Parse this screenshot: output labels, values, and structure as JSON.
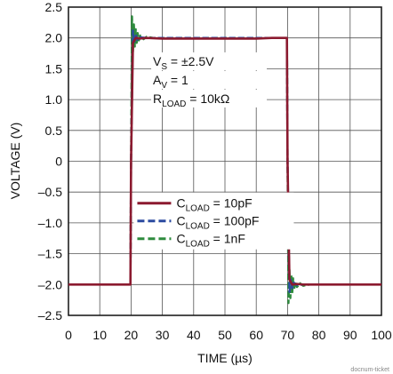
{
  "chart_data": {
    "type": "line",
    "title": "",
    "xlabel": "TIME (µs)",
    "ylabel": "VOLTAGE (V)",
    "xlim": [
      0,
      100
    ],
    "ylim": [
      -2.5,
      2.5
    ],
    "grid": true,
    "x_ticks": [
      {
        "value": 0,
        "label": "0"
      },
      {
        "value": 10,
        "label": "10"
      },
      {
        "value": 20,
        "label": "20"
      },
      {
        "value": 30,
        "label": "30"
      },
      {
        "value": 40,
        "label": "40"
      },
      {
        "value": 50,
        "label": "50"
      },
      {
        "value": 60,
        "label": "60"
      },
      {
        "value": 70,
        "label": "70"
      },
      {
        "value": 80,
        "label": "80"
      },
      {
        "value": 90,
        "label": "90"
      },
      {
        "value": 100,
        "label": "100"
      }
    ],
    "y_ticks": [
      {
        "value": 2.5,
        "label": "2.5"
      },
      {
        "value": 2.0,
        "label": "2.0"
      },
      {
        "value": 1.5,
        "label": "1.5"
      },
      {
        "value": 1.0,
        "label": "1.0"
      },
      {
        "value": 0.5,
        "label": "0.5"
      },
      {
        "value": 0,
        "label": "0"
      },
      {
        "value": -0.5,
        "label": "–0.5"
      },
      {
        "value": -1.0,
        "label": "–1.0"
      },
      {
        "value": -1.5,
        "label": "–1.5"
      },
      {
        "value": -2.0,
        "label": "–2.0"
      },
      {
        "value": -2.5,
        "label": "–2.5"
      }
    ],
    "annotations": [
      {
        "main": "V",
        "sub": "S",
        "rest": " = ±2.5V"
      },
      {
        "main": "A",
        "sub": "V",
        "rest": " = 1"
      },
      {
        "main": "R",
        "sub": "LOAD",
        "rest": " = 10kΩ"
      }
    ],
    "legend_position": "lower-center",
    "series": [
      {
        "name": "10pF",
        "legend_prefix": "C",
        "legend_sub": "LOAD",
        "legend_suffix": " = 10pF",
        "color": "#8b1a2f",
        "dash": "solid",
        "x": [
          0,
          19.8,
          20.0,
          20.6,
          21.5,
          23,
          25,
          30,
          35,
          40,
          45,
          50,
          55,
          60,
          65,
          69.8,
          70.0,
          70.6,
          71.5,
          73,
          75,
          80,
          90,
          100
        ],
        "y": [
          -2.0,
          -2.0,
          0.0,
          1.92,
          2.0,
          1.99,
          2.0,
          1.99,
          1.99,
          1.99,
          1.99,
          1.99,
          1.99,
          1.99,
          2.0,
          2.0,
          0.0,
          -1.92,
          -2.0,
          -1.99,
          -2.0,
          -2.0,
          -2.0,
          -2.0
        ]
      },
      {
        "name": "100pF",
        "legend_prefix": "C",
        "legend_sub": "LOAD",
        "legend_suffix": " = 100pF",
        "color": "#2b4aa0",
        "dash": "dashed",
        "x": [
          0,
          19.8,
          20.0,
          20.6,
          21.0,
          21.5,
          22.0,
          23,
          25,
          30,
          40,
          50,
          60,
          69.8,
          70.0,
          70.6,
          71.0,
          71.5,
          72.0,
          73,
          75,
          80,
          90,
          100
        ],
        "y": [
          -2.0,
          -2.0,
          0.0,
          2.12,
          1.92,
          2.06,
          1.97,
          2.01,
          2.0,
          2.0,
          2.0,
          2.0,
          2.0,
          2.0,
          0.0,
          -2.12,
          -1.92,
          -2.06,
          -1.97,
          -2.01,
          -2.0,
          -2.0,
          -2.0,
          -2.0
        ]
      },
      {
        "name": "1nF",
        "legend_prefix": "C",
        "legend_sub": "LOAD",
        "legend_suffix": " = 1nF",
        "color": "#2e8b3e",
        "dash": "dashed",
        "x": [
          0,
          19.8,
          20.0,
          20.3,
          20.6,
          20.9,
          21.2,
          21.5,
          21.8,
          22.1,
          22.5,
          23,
          24,
          25,
          27,
          30,
          40,
          50,
          60,
          69.8,
          70.0,
          70.3,
          70.6,
          70.9,
          71.2,
          71.5,
          71.8,
          72.1,
          72.5,
          73,
          74,
          75,
          77,
          80,
          90,
          100
        ],
        "y": [
          -2.0,
          -2.0,
          0.0,
          2.35,
          1.78,
          2.22,
          1.86,
          2.14,
          1.92,
          2.08,
          1.96,
          2.04,
          1.98,
          2.02,
          2.0,
          2.0,
          2.0,
          2.0,
          2.0,
          2.0,
          0.0,
          -2.3,
          -1.76,
          -2.22,
          -1.84,
          -2.14,
          -1.9,
          -2.08,
          -1.95,
          -2.04,
          -1.98,
          -2.02,
          -2.0,
          -2.0,
          -2.0,
          -2.0
        ]
      }
    ]
  },
  "footer": "docnum-ticket"
}
